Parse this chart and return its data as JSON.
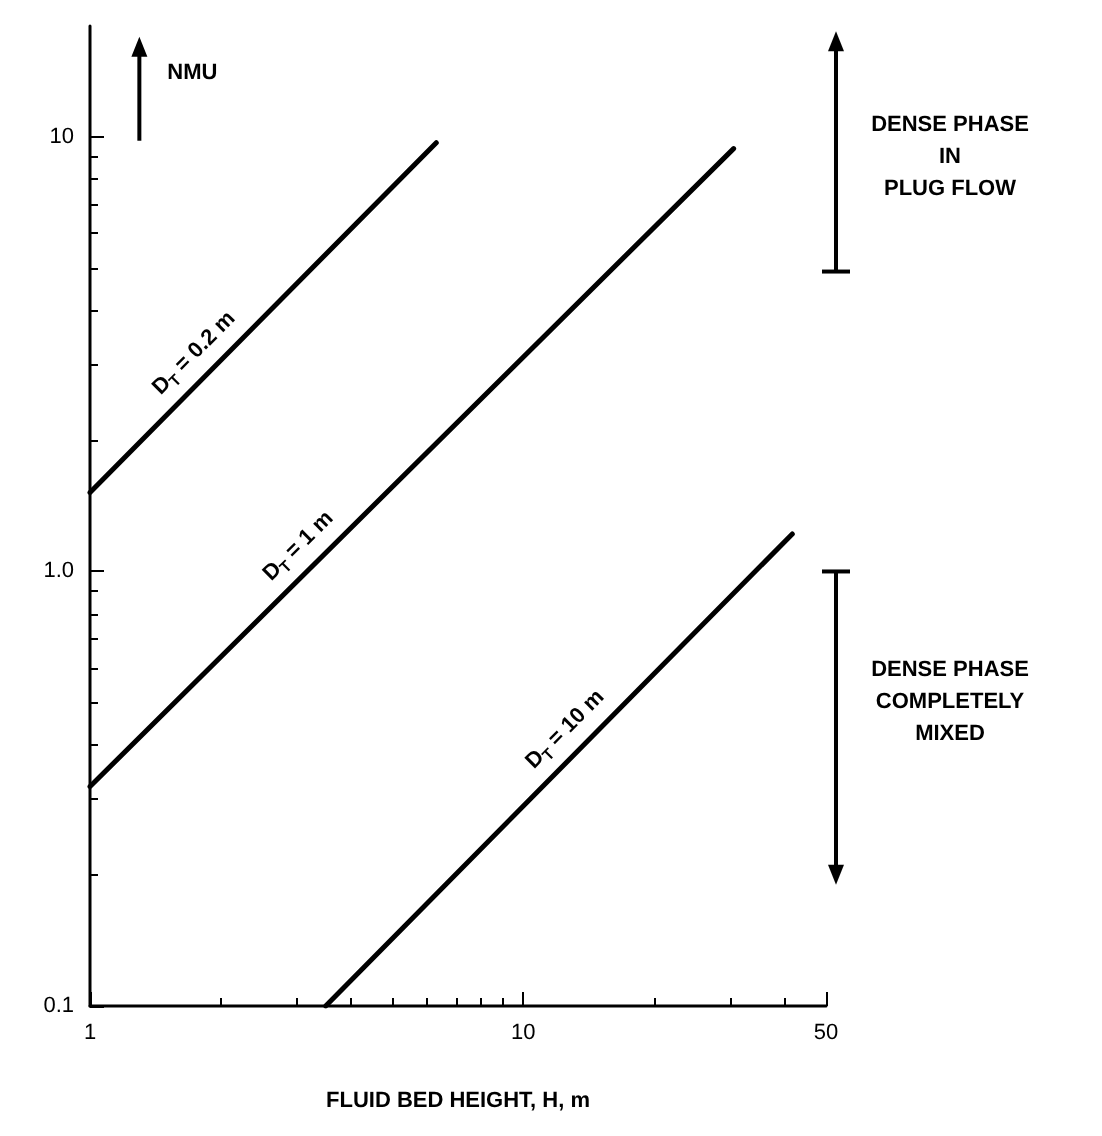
{
  "chart_data": {
    "type": "line",
    "xlabel": "FLUID BED HEIGHT, H, m",
    "log": "xy",
    "xlim": [
      1,
      50
    ],
    "xticks": [
      1,
      10,
      50
    ],
    "ylim": [
      0.1,
      18
    ],
    "yticks": [
      0.1,
      {
        "value": 1,
        "label": "1.0"
      },
      10
    ],
    "grid": false,
    "marker": "none",
    "line_style": "solid",
    "series": [
      {
        "name": "D$_{T}$ = 0.2 m",
        "color": "#000000",
        "x": [
          1,
          6.3
        ],
        "values": [
          1.52,
          9.7
        ]
      },
      {
        "name": "D$_{T}$ = 1 m",
        "color": "#000000",
        "x": [
          1,
          30.6
        ],
        "values": [
          0.32,
          9.4
        ]
      },
      {
        "name": "D$_{T}$ = 10 m",
        "color": "#000000",
        "x": [
          3.5,
          41.8
        ],
        "values": [
          0.1,
          1.22
        ]
      }
    ],
    "annotations": [
      "NMU",
      "DENSE PHASE\nIN\nPLUG FLOW",
      "DENSE PHASE\nCOMPLETELY\nMIXED"
    ]
  }
}
